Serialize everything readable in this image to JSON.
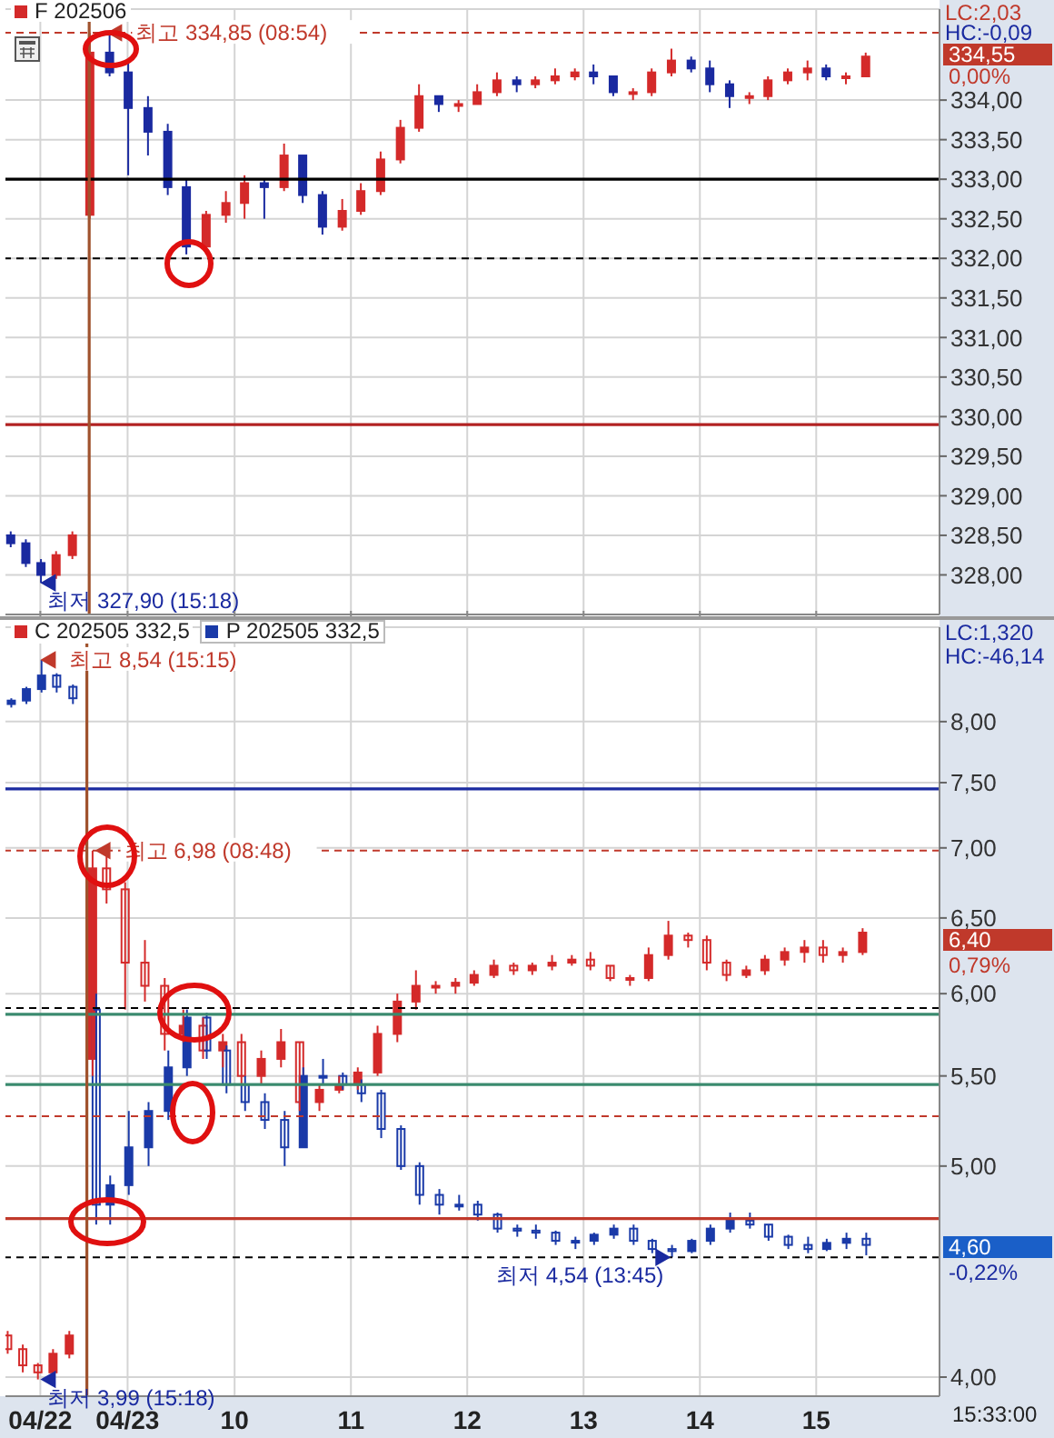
{
  "chart_data": [
    {
      "type": "candlestick",
      "x": [
        8.07,
        8.2,
        8.33,
        8.46,
        8.6,
        8.75,
        8.92,
        9.08,
        9.25,
        9.42,
        9.58,
        9.75,
        9.92,
        10.08,
        10.25,
        10.42,
        10.58,
        10.75,
        10.92,
        11.08,
        11.25,
        11.42,
        11.58,
        11.75,
        11.92,
        12.08,
        12.25,
        12.42,
        12.58,
        12.75,
        12.92,
        13.08,
        13.25,
        13.42,
        13.58,
        13.75,
        13.92,
        14.08,
        14.25,
        14.42,
        14.58,
        14.75,
        14.92,
        15.08,
        15.25,
        15.42
      ],
      "series": [
        {
          "name": "F 202506",
          "colors": [
            "#1a2aa0",
            "#1a2aa0",
            "#1a2aa0",
            "#d42a2a",
            "#d42a2a",
            "#d42a2a",
            "#1a2aa0",
            "#1a2aa0",
            "#1a2aa0",
            "#1a2aa0",
            "#1a2aa0",
            "#d42a2a",
            "#d42a2a",
            "#d42a2a",
            "#1a2aa0",
            "#d42a2a",
            "#1a2aa0",
            "#1a2aa0",
            "#d42a2a",
            "#d42a2a",
            "#d42a2a",
            "#d42a2a",
            "#d42a2a",
            "#1a2aa0",
            "#d42a2a",
            "#d42a2a",
            "#d42a2a",
            "#1a2aa0",
            "#d42a2a",
            "#d42a2a",
            "#d42a2a",
            "#1a2aa0",
            "#1a2aa0",
            "#d42a2a",
            "#d42a2a",
            "#d42a2a",
            "#1a2aa0",
            "#1a2aa0",
            "#1a2aa0",
            "#d42a2a",
            "#d42a2a",
            "#d42a2a",
            "#d42a2a",
            "#1a2aa0",
            "#d42a2a",
            "#d42a2a"
          ],
          "ohlc": [
            [
              328.5,
              328.55,
              328.35,
              328.4
            ],
            [
              328.4,
              328.45,
              328.1,
              328.15
            ],
            [
              328.15,
              328.2,
              327.9,
              328.0
            ],
            [
              328.0,
              328.3,
              327.95,
              328.25
            ],
            [
              328.25,
              328.55,
              328.2,
              328.5
            ],
            [
              332.55,
              334.85,
              332.5,
              334.6
            ],
            [
              334.6,
              334.85,
              334.3,
              334.35
            ],
            [
              334.35,
              334.5,
              333.05,
              333.9
            ],
            [
              333.9,
              334.05,
              333.3,
              333.6
            ],
            [
              333.6,
              333.7,
              332.8,
              332.9
            ],
            [
              332.9,
              333.0,
              332.05,
              332.15
            ],
            [
              332.15,
              332.6,
              332.05,
              332.55
            ],
            [
              332.55,
              332.85,
              332.45,
              332.7
            ],
            [
              332.7,
              333.05,
              332.5,
              332.95
            ],
            [
              332.95,
              333.0,
              332.5,
              332.9
            ],
            [
              332.9,
              333.45,
              332.85,
              333.3
            ],
            [
              333.3,
              333.3,
              332.7,
              332.8
            ],
            [
              332.8,
              332.85,
              332.3,
              332.4
            ],
            [
              332.4,
              332.75,
              332.35,
              332.6
            ],
            [
              332.6,
              332.95,
              332.55,
              332.85
            ],
            [
              332.85,
              333.35,
              332.8,
              333.25
            ],
            [
              333.25,
              333.75,
              333.2,
              333.65
            ],
            [
              333.65,
              334.2,
              333.6,
              334.05
            ],
            [
              334.05,
              334.05,
              333.85,
              333.95
            ],
            [
              333.95,
              334.0,
              333.85,
              333.95
            ],
            [
              333.95,
              334.2,
              333.95,
              334.1
            ],
            [
              334.1,
              334.35,
              334.05,
              334.25
            ],
            [
              334.25,
              334.3,
              334.1,
              334.2
            ],
            [
              334.2,
              334.3,
              334.15,
              334.25
            ],
            [
              334.25,
              334.4,
              334.2,
              334.3
            ],
            [
              334.3,
              334.4,
              334.25,
              334.35
            ],
            [
              334.35,
              334.45,
              334.2,
              334.3
            ],
            [
              334.3,
              334.3,
              334.05,
              334.1
            ],
            [
              334.1,
              334.15,
              334.0,
              334.1
            ],
            [
              334.1,
              334.4,
              334.05,
              334.35
            ],
            [
              334.35,
              334.65,
              334.3,
              334.5
            ],
            [
              334.5,
              334.55,
              334.35,
              334.4
            ],
            [
              334.4,
              334.5,
              334.1,
              334.2
            ],
            [
              334.2,
              334.25,
              333.9,
              334.05
            ],
            [
              334.05,
              334.1,
              333.95,
              334.05
            ],
            [
              334.05,
              334.3,
              334.0,
              334.25
            ],
            [
              334.25,
              334.4,
              334.2,
              334.35
            ],
            [
              334.35,
              334.5,
              334.25,
              334.4
            ],
            [
              334.4,
              334.45,
              334.25,
              334.3
            ],
            [
              334.3,
              334.35,
              334.2,
              334.3
            ],
            [
              334.3,
              334.6,
              334.3,
              334.55
            ]
          ]
        }
      ],
      "xlim": [
        8.03,
        16.06
      ],
      "ylim": [
        327.5,
        335.15
      ],
      "yticks": [
        {
          "value": 328,
          "label": "328,00"
        },
        {
          "value": 328.5,
          "label": "328,50"
        },
        {
          "value": 329,
          "label": "329,00"
        },
        {
          "value": 329.5,
          "label": "329,50"
        },
        {
          "value": 330,
          "label": "330,00"
        },
        {
          "value": 330.5,
          "label": "330,50"
        },
        {
          "value": 331,
          "label": "331,00"
        },
        {
          "value": 331.5,
          "label": "331,50"
        },
        {
          "value": 332,
          "label": "332,00"
        },
        {
          "value": 332.5,
          "label": "332,50"
        },
        {
          "value": 333,
          "label": "333,00"
        },
        {
          "value": 333.5,
          "label": "333,50"
        },
        {
          "value": 334,
          "label": "334,00"
        }
      ],
      "tick_labels": "y",
      "grid": true,
      "legend": "top left",
      "ref_lines": [
        {
          "axis": "y",
          "value": 334.85,
          "color": "#c0392b",
          "line_style": "dashed"
        },
        {
          "axis": "y",
          "value": 333,
          "color": "#000000"
        },
        {
          "axis": "y",
          "value": 332,
          "color": "#000000",
          "line_style": "dashed"
        },
        {
          "axis": "y",
          "value": 329.9,
          "color": "#b22222"
        },
        {
          "axis": "x",
          "value": 8.75,
          "color": "#a0522d"
        }
      ],
      "annotations": [
        {
          "text": "최고 334,85 (08:54)",
          "x": 8.9,
          "y": 334.85
        },
        {
          "text": "최저 327,90 (15:18)",
          "x": 8.33,
          "y": 327.9
        },
        "LC:2,03",
        "HC:-0,09",
        "334,55",
        "0,00%"
      ]
    },
    {
      "type": "candlestick",
      "log": true,
      "x": [
        8.07,
        8.2,
        8.33,
        8.46,
        8.6,
        8.8,
        8.92,
        9.08,
        9.25,
        9.42,
        9.58,
        9.75,
        9.92,
        10.08,
        10.25,
        10.42,
        10.58,
        10.75,
        10.92,
        11.08,
        11.25,
        11.42,
        11.58,
        11.75,
        11.92,
        12.08,
        12.25,
        12.42,
        12.58,
        12.75,
        12.92,
        13.08,
        13.25,
        13.42,
        13.58,
        13.75,
        13.92,
        14.08,
        14.25,
        14.42,
        14.58,
        14.75,
        14.92,
        15.08,
        15.25,
        15.42
      ],
      "series": [
        {
          "name": "C 202505 332,5",
          "color": "#d42a2a",
          "ohlc": [
            [
              4.18,
              4.2,
              4.1,
              4.12
            ],
            [
              4.12,
              4.14,
              4.02,
              4.05
            ],
            [
              4.05,
              4.06,
              3.99,
              4.02
            ],
            [
              4.02,
              4.12,
              4.0,
              4.1
            ],
            [
              4.1,
              4.2,
              4.08,
              4.18
            ],
            [
              5.6,
              6.98,
              5.5,
              6.85
            ],
            [
              6.85,
              6.98,
              6.6,
              6.7
            ],
            [
              6.7,
              6.75,
              5.9,
              6.2
            ],
            [
              6.2,
              6.35,
              5.95,
              6.05
            ],
            [
              6.05,
              6.1,
              5.65,
              5.75
            ],
            [
              5.75,
              5.9,
              5.7,
              5.8
            ],
            [
              5.8,
              5.85,
              5.6,
              5.65
            ],
            [
              5.65,
              5.75,
              5.55,
              5.7
            ],
            [
              5.7,
              5.75,
              5.45,
              5.5
            ],
            [
              5.5,
              5.65,
              5.45,
              5.6
            ],
            [
              5.6,
              5.78,
              5.55,
              5.7
            ],
            [
              5.7,
              5.7,
              5.3,
              5.35
            ],
            [
              5.35,
              5.45,
              5.3,
              5.42
            ],
            [
              5.42,
              5.5,
              5.4,
              5.45
            ],
            [
              5.45,
              5.55,
              5.42,
              5.52
            ],
            [
              5.52,
              5.8,
              5.5,
              5.75
            ],
            [
              5.75,
              6.0,
              5.7,
              5.95
            ],
            [
              5.95,
              6.15,
              5.9,
              6.05
            ],
            [
              6.05,
              6.08,
              6.0,
              6.05
            ],
            [
              6.05,
              6.1,
              6.0,
              6.07
            ],
            [
              6.07,
              6.15,
              6.05,
              6.12
            ],
            [
              6.12,
              6.22,
              6.1,
              6.18
            ],
            [
              6.18,
              6.2,
              6.12,
              6.15
            ],
            [
              6.15,
              6.2,
              6.12,
              6.18
            ],
            [
              6.18,
              6.25,
              6.15,
              6.2
            ],
            [
              6.2,
              6.25,
              6.18,
              6.22
            ],
            [
              6.22,
              6.27,
              6.15,
              6.18
            ],
            [
              6.18,
              6.18,
              6.08,
              6.1
            ],
            [
              6.1,
              6.12,
              6.05,
              6.1
            ],
            [
              6.1,
              6.3,
              6.08,
              6.25
            ],
            [
              6.25,
              6.48,
              6.22,
              6.38
            ],
            [
              6.38,
              6.4,
              6.3,
              6.35
            ],
            [
              6.35,
              6.38,
              6.15,
              6.2
            ],
            [
              6.2,
              6.22,
              6.08,
              6.12
            ],
            [
              6.12,
              6.18,
              6.1,
              6.15
            ],
            [
              6.15,
              6.25,
              6.12,
              6.22
            ],
            [
              6.22,
              6.3,
              6.18,
              6.27
            ],
            [
              6.27,
              6.35,
              6.2,
              6.3
            ],
            [
              6.3,
              6.35,
              6.2,
              6.25
            ],
            [
              6.25,
              6.3,
              6.2,
              6.27
            ],
            [
              6.27,
              6.43,
              6.25,
              6.4
            ]
          ]
        },
        {
          "name": "P 202505 332,5",
          "color": "#1a3aa8",
          "ohlc": [
            [
              8.15,
              8.2,
              8.12,
              8.18
            ],
            [
              8.18,
              8.3,
              8.15,
              8.28
            ],
            [
              8.28,
              8.54,
              8.25,
              8.4
            ],
            [
              8.4,
              8.42,
              8.25,
              8.3
            ],
            [
              8.3,
              8.32,
              8.15,
              8.2
            ],
            [
              5.9,
              6.0,
              4.7,
              4.8
            ],
            [
              4.8,
              4.95,
              4.7,
              4.9
            ],
            [
              4.9,
              5.3,
              4.85,
              5.1
            ],
            [
              5.1,
              5.35,
              5.0,
              5.3
            ],
            [
              5.3,
              5.65,
              5.25,
              5.55
            ],
            [
              5.55,
              5.9,
              5.5,
              5.85
            ],
            [
              5.85,
              5.88,
              5.6,
              5.65
            ],
            [
              5.65,
              5.68,
              5.4,
              5.45
            ],
            [
              5.45,
              5.5,
              5.3,
              5.35
            ],
            [
              5.35,
              5.4,
              5.2,
              5.25
            ],
            [
              5.25,
              5.3,
              5.0,
              5.1
            ],
            [
              5.1,
              5.55,
              5.1,
              5.5
            ],
            [
              5.5,
              5.6,
              5.45,
              5.5
            ],
            [
              5.5,
              5.52,
              5.42,
              5.45
            ],
            [
              5.45,
              5.48,
              5.35,
              5.4
            ],
            [
              5.4,
              5.42,
              5.15,
              5.2
            ],
            [
              5.2,
              5.22,
              4.98,
              5.0
            ],
            [
              5.0,
              5.02,
              4.8,
              4.85
            ],
            [
              4.85,
              4.88,
              4.75,
              4.8
            ],
            [
              4.8,
              4.85,
              4.77,
              4.8
            ],
            [
              4.8,
              4.82,
              4.72,
              4.75
            ],
            [
              4.75,
              4.76,
              4.66,
              4.68
            ],
            [
              4.68,
              4.7,
              4.64,
              4.67
            ],
            [
              4.67,
              4.7,
              4.63,
              4.66
            ],
            [
              4.66,
              4.67,
              4.6,
              4.62
            ],
            [
              4.62,
              4.64,
              4.58,
              4.62
            ],
            [
              4.62,
              4.66,
              4.6,
              4.65
            ],
            [
              4.65,
              4.7,
              4.63,
              4.68
            ],
            [
              4.68,
              4.7,
              4.6,
              4.62
            ],
            [
              4.62,
              4.63,
              4.56,
              4.58
            ],
            [
              4.58,
              4.6,
              4.54,
              4.57
            ],
            [
              4.57,
              4.63,
              4.56,
              4.62
            ],
            [
              4.62,
              4.7,
              4.6,
              4.68
            ],
            [
              4.68,
              4.76,
              4.66,
              4.72
            ],
            [
              4.72,
              4.76,
              4.68,
              4.7
            ],
            [
              4.7,
              4.7,
              4.62,
              4.64
            ],
            [
              4.64,
              4.65,
              4.58,
              4.6
            ],
            [
              4.6,
              4.64,
              4.56,
              4.58
            ],
            [
              4.58,
              4.63,
              4.57,
              4.61
            ],
            [
              4.61,
              4.66,
              4.58,
              4.63
            ],
            [
              4.63,
              4.66,
              4.55,
              4.6
            ]
          ]
        }
      ],
      "xlim": [
        8.03,
        16.06
      ],
      "xticks": [
        {
          "value": 8.33,
          "label": "04/22"
        },
        {
          "value": 9.08,
          "label": "04/23"
        },
        10,
        11,
        12,
        13,
        14,
        15
      ],
      "ylim": [
        3.92,
        8.84
      ],
      "yticks": [
        {
          "value": 4,
          "label": "4,00"
        },
        {
          "value": 5,
          "label": "5,00"
        },
        {
          "value": 5.5,
          "label": "5,50"
        },
        {
          "value": 6,
          "label": "6,00"
        },
        {
          "value": 6.5,
          "label": "6,50"
        },
        {
          "value": 7,
          "label": "7,00"
        },
        {
          "value": 7.5,
          "label": "7,50"
        },
        {
          "value": 8,
          "label": "8,00"
        }
      ],
      "grid": true,
      "legend": "top left",
      "ref_lines": [
        {
          "axis": "y",
          "value": 7.45,
          "color": "#1a2aa0"
        },
        {
          "axis": "y",
          "value": 6.98,
          "color": "#c0392b",
          "line_style": "dashed"
        },
        {
          "axis": "y",
          "value": 5.91,
          "color": "#000000",
          "line_style": "dashed"
        },
        {
          "axis": "y",
          "value": 5.87,
          "color": "#3a8a6e"
        },
        {
          "axis": "y",
          "value": 5.45,
          "color": "#3a8a6e"
        },
        {
          "axis": "y",
          "value": 5.27,
          "color": "#c0392b",
          "line_style": "dashed"
        },
        {
          "axis": "y",
          "value": 4.73,
          "color": "#c0392b"
        },
        {
          "axis": "y",
          "value": 4.54,
          "color": "#000000",
          "line_style": "dashed"
        },
        {
          "axis": "x",
          "value": 8.73,
          "color": "#a0522d"
        }
      ],
      "annotations": [
        {
          "text": "최고 8,54 (15:15)",
          "x": 8.33,
          "y": 8.54
        },
        {
          "text": "최고 6,98 (08:48)",
          "x": 8.8,
          "y": 6.98
        },
        {
          "text": "최저 4,54 (13:45)",
          "x": 13.75,
          "y": 4.54
        },
        {
          "text": "최저 3,99 (15:18)",
          "x": 8.33,
          "y": 3.99
        },
        "LC:1,320",
        "HC:-46,14",
        "6,40",
        "0,79%",
        "4,60",
        "-0,22%",
        "15:33:00"
      ]
    }
  ]
}
